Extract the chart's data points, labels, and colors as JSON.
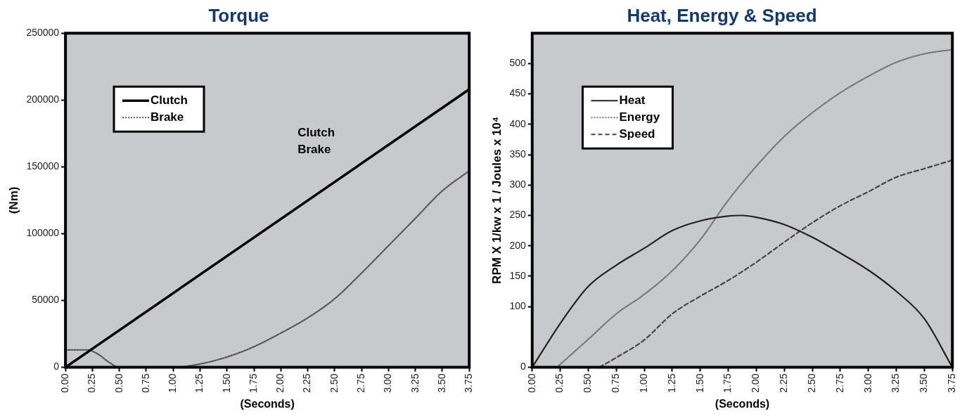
{
  "chart_data": [
    {
      "type": "line",
      "title": "Torque",
      "xlabel": "(Seconds)",
      "ylabel": "(Nm)",
      "xlim": [
        0,
        3.75
      ],
      "xticks": [
        {
          "value": 0,
          "label": "0.00"
        },
        {
          "value": 0.25,
          "label": "0.25"
        },
        {
          "value": 0.5,
          "label": "0.50"
        },
        {
          "value": 0.75,
          "label": "0.75"
        },
        {
          "value": 1,
          "label": "1.00"
        },
        {
          "value": 1.25,
          "label": "1.25"
        },
        {
          "value": 1.5,
          "label": "1.50"
        },
        {
          "value": 1.75,
          "label": "1.75"
        },
        {
          "value": 2,
          "label": "2.00"
        },
        {
          "value": 2.25,
          "label": "2.25"
        },
        {
          "value": 2.5,
          "label": "2.50"
        },
        {
          "value": 2.75,
          "label": "2.75"
        },
        {
          "value": 3,
          "label": "3.00"
        },
        {
          "value": 3.25,
          "label": "3.25"
        },
        {
          "value": 3.5,
          "label": "3.50"
        },
        {
          "value": 3.75,
          "label": "3.75"
        }
      ],
      "ylim": [
        0,
        250000
      ],
      "yticks": [
        0,
        50000,
        100000,
        150000,
        200000,
        250000
      ],
      "legend": "top left",
      "marker": "none",
      "series": [
        {
          "name": "Clutch",
          "color": "#000000",
          "line_style": "solid",
          "x": [
            0,
            3.75
          ],
          "values": [
            0,
            208000
          ]
        },
        {
          "name": "Brake",
          "color": "#555555",
          "line_style": "dotted",
          "x": [
            0,
            0.2,
            0.3,
            0.4,
            0.5,
            0.75,
            1,
            1.25,
            1.5,
            1.75,
            2,
            2.25,
            2.5,
            2.75,
            3,
            3.25,
            3.5,
            3.75
          ],
          "values": [
            13000,
            13000,
            10000,
            4000,
            0,
            0,
            0,
            2500,
            7700,
            15400,
            25600,
            37000,
            51300,
            70500,
            91000,
            111500,
            132000,
            147000
          ]
        }
      ],
      "annotations": [
        "Clutch",
        "Brake"
      ]
    },
    {
      "type": "line",
      "title": "Heat, Energy & Speed",
      "xlabel": "(Seconds)",
      "ylabel": "RPM X 1/kw x 1 / Joules x 10⁴",
      "xlim": [
        0,
        3.75
      ],
      "xticks": [
        {
          "value": 0,
          "label": "0.00"
        },
        {
          "value": 0.25,
          "label": "0.25"
        },
        {
          "value": 0.5,
          "label": "0.50"
        },
        {
          "value": 0.75,
          "label": "0.75"
        },
        {
          "value": 1,
          "label": "1.00"
        },
        {
          "value": 1.25,
          "label": "1.25"
        },
        {
          "value": 1.5,
          "label": "1.50"
        },
        {
          "value": 1.75,
          "label": "1.75"
        },
        {
          "value": 2,
          "label": "2.00"
        },
        {
          "value": 2.25,
          "label": "2.25"
        },
        {
          "value": 2.5,
          "label": "2.50"
        },
        {
          "value": 2.75,
          "label": "2.75"
        },
        {
          "value": 3,
          "label": "3.00"
        },
        {
          "value": 3.25,
          "label": "3.25"
        },
        {
          "value": 3.5,
          "label": "3.50"
        },
        {
          "value": 3.75,
          "label": "3.75"
        }
      ],
      "ylim": [
        0,
        550
      ],
      "yticks": [
        0,
        100,
        150,
        200,
        250,
        300,
        350,
        400,
        450,
        500
      ],
      "legend": "top left",
      "marker": "none",
      "series": [
        {
          "name": "Heat",
          "color": "#222222",
          "line_style": "solid",
          "x": [
            0,
            0.25,
            0.5,
            0.75,
            1,
            1.25,
            1.5,
            1.75,
            1.875,
            2,
            2.25,
            2.5,
            2.75,
            3,
            3.25,
            3.5,
            3.75
          ],
          "values": [
            0,
            72,
            133,
            168,
            196,
            225,
            241,
            249,
            250,
            247,
            235,
            214,
            188,
            160,
            125,
            80,
            0
          ]
        },
        {
          "name": "Energy",
          "color": "#777777",
          "line_style": "dotted",
          "x": [
            0.22,
            0.5,
            0.75,
            1,
            1.25,
            1.5,
            1.75,
            2,
            2.25,
            2.5,
            2.75,
            3,
            3.25,
            3.5,
            3.75
          ],
          "values": [
            0,
            46,
            88,
            120,
            159,
            210,
            275,
            331,
            380,
            419,
            452,
            479,
            502,
            516,
            523
          ]
        },
        {
          "name": "Speed",
          "color": "#444444",
          "line_style": "dashed",
          "x": [
            0.6,
            0.75,
            1,
            1.25,
            1.5,
            1.75,
            2,
            2.25,
            2.5,
            2.75,
            3,
            3.25,
            3.5,
            3.75
          ],
          "values": [
            0,
            16,
            45,
            88,
            117,
            143,
            173,
            206,
            238,
            266,
            289,
            313,
            327,
            341
          ]
        }
      ]
    }
  ]
}
